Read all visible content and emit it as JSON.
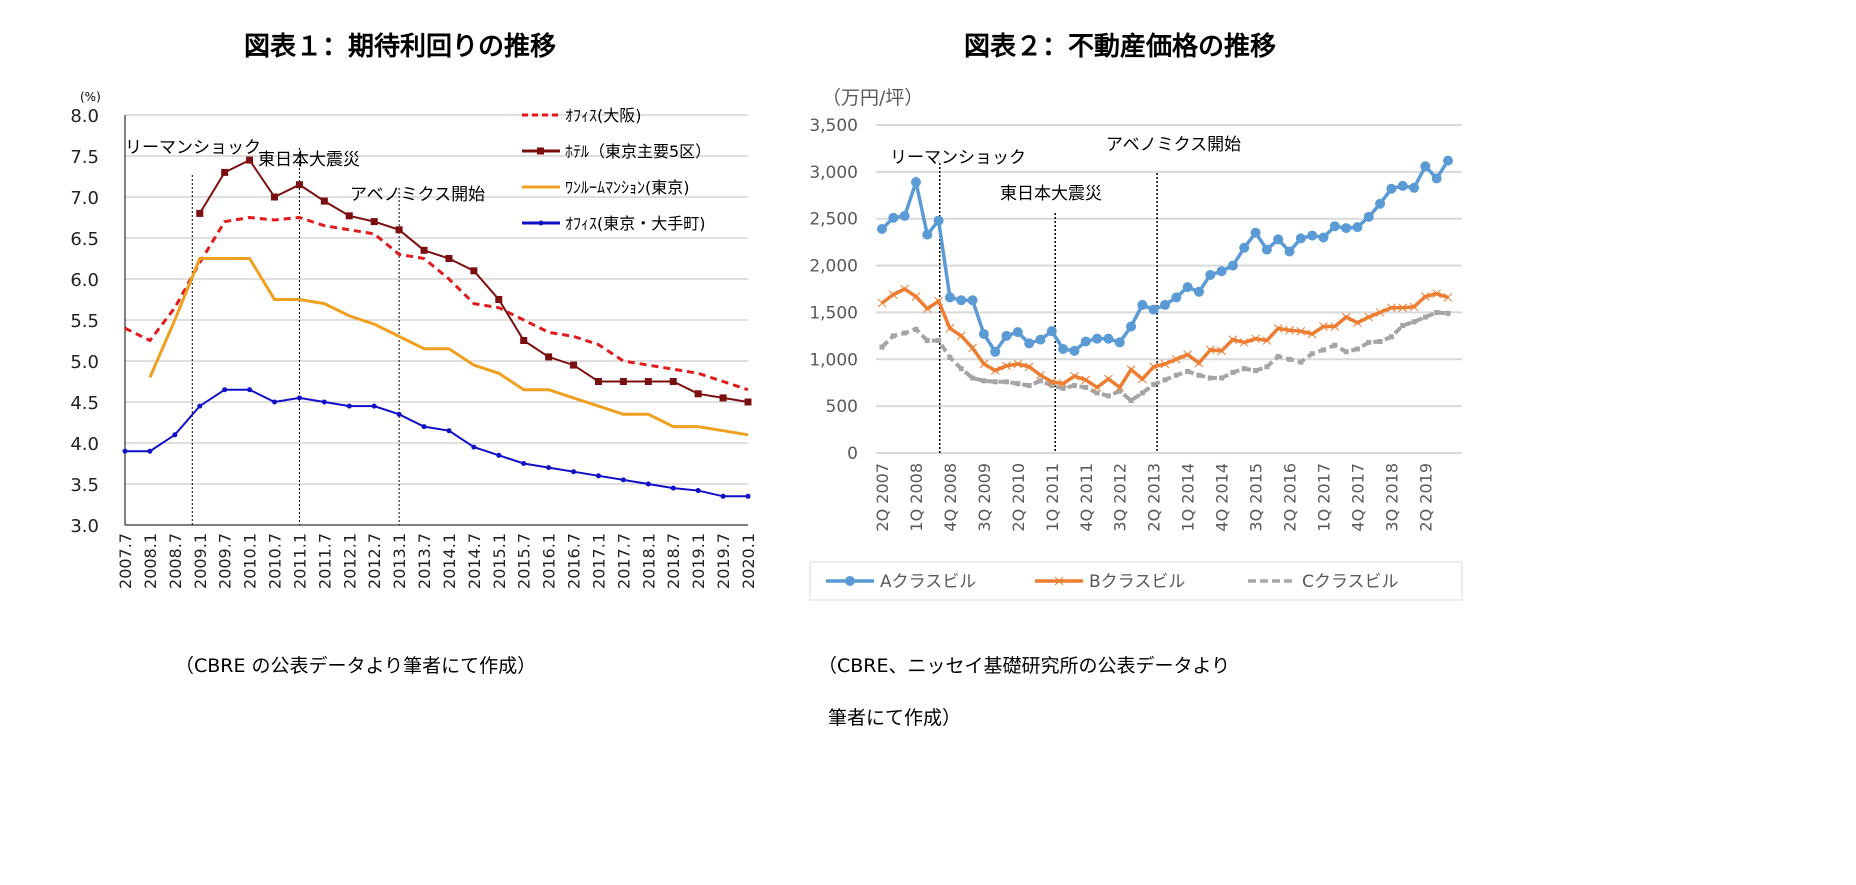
{
  "chart_data": [
    {
      "type": "line",
      "title": "図表１：期待利回りの推移",
      "ylabel": "(%)",
      "ylim": [
        3.0,
        8.0
      ],
      "yticks": [
        "3.0",
        "3.5",
        "4.0",
        "4.5",
        "5.0",
        "5.5",
        "6.0",
        "6.5",
        "7.0",
        "7.5",
        "8.0"
      ],
      "grid": true,
      "legend": "top-right",
      "categories": [
        "2007.7",
        "2008.1",
        "2008.7",
        "2009.1",
        "2009.7",
        "2010.1",
        "2010.7",
        "2011.1",
        "2011.7",
        "2012.1",
        "2012.7",
        "2013.1",
        "2013.7",
        "2014.1",
        "2014.7",
        "2015.1",
        "2015.7",
        "2016.1",
        "2016.7",
        "2017.1",
        "2017.7",
        "2018.1",
        "2018.7",
        "2019.1",
        "2019.7",
        "2020.1"
      ],
      "series": [
        {
          "name": "ｵﾌｨｽ(大阪)",
          "color": "#e31a1c",
          "style": "dashed",
          "values": [
            5.4,
            5.25,
            5.65,
            6.2,
            6.7,
            6.75,
            6.72,
            6.75,
            6.65,
            6.6,
            6.55,
            6.3,
            6.25,
            6.0,
            5.7,
            5.65,
            5.5,
            5.35,
            5.3,
            5.2,
            5.0,
            4.95,
            4.9,
            4.85,
            4.75,
            4.65
          ]
        },
        {
          "name": "ﾎﾃﾙ（東京主要5区）",
          "color": "#7b0f0f",
          "style": "square-markers",
          "values": [
            null,
            null,
            null,
            6.8,
            7.3,
            7.45,
            7.0,
            7.15,
            6.95,
            6.77,
            6.7,
            6.6,
            6.35,
            6.25,
            6.1,
            5.75,
            5.25,
            5.05,
            4.95,
            4.75,
            4.75,
            4.75,
            4.75,
            4.6,
            4.55,
            4.5
          ]
        },
        {
          "name": "ﾜﾝﾙｰﾑﾏﾝｼｮﾝ(東京)",
          "color": "#f0a020",
          "style": "solid",
          "values": [
            null,
            4.8,
            5.5,
            6.25,
            6.25,
            6.25,
            5.75,
            5.75,
            5.7,
            5.55,
            5.45,
            5.3,
            5.15,
            5.15,
            4.95,
            4.85,
            4.65,
            4.65,
            4.55,
            4.45,
            4.35,
            4.35,
            4.2,
            4.2,
            4.15,
            4.1
          ]
        },
        {
          "name": "ｵﾌｨｽ(東京・大手町)",
          "color": "#1010c8",
          "style": "diamond-markers",
          "values": [
            3.9,
            3.9,
            4.1,
            4.45,
            4.65,
            4.65,
            4.5,
            4.55,
            4.5,
            4.45,
            4.45,
            4.35,
            4.2,
            4.15,
            3.95,
            3.85,
            3.75,
            3.7,
            3.65,
            3.6,
            3.55,
            3.5,
            3.45,
            3.42,
            3.35,
            3.35
          ]
        }
      ],
      "annotations": [
        {
          "label": "リーマンショック",
          "x": "2008.9"
        },
        {
          "label": "東日本大震災",
          "x": "2011.1"
        },
        {
          "label": "アベノミクス開始",
          "x": "2013.1"
        }
      ],
      "caption": "（CBRE の公表データより筆者にて作成）"
    },
    {
      "type": "line",
      "title": "図表２：不動産価格の推移",
      "ylabel": "（万円/坪）",
      "ylim": [
        0,
        3500
      ],
      "yticks": [
        "0",
        "500",
        "1,000",
        "1,500",
        "2,000",
        "2,500",
        "3,000",
        "3,500"
      ],
      "grid": true,
      "legend": "bottom",
      "xticklabels": [
        "2Q 2007",
        "1Q 2008",
        "4Q 2008",
        "3Q 2009",
        "2Q 2010",
        "1Q 2011",
        "4Q 2011",
        "3Q 2012",
        "2Q 2013",
        "1Q 2014",
        "4Q 2014",
        "3Q 2015",
        "2Q 2016",
        "1Q 2017",
        "4Q 2017",
        "3Q 2018",
        "2Q 2019"
      ],
      "series": [
        {
          "name": "Aクラスビル",
          "color": "#5b9bd5",
          "values": [
            2390,
            2510,
            2530,
            2890,
            2330,
            2480,
            1660,
            1630,
            1630,
            1270,
            1080,
            1250,
            1290,
            1170,
            1210,
            1300,
            1110,
            1090,
            1190,
            1220,
            1220,
            1180,
            1350,
            1580,
            1530,
            1580,
            1660,
            1770,
            1720,
            1900,
            1940,
            2000,
            2190,
            2350,
            2170,
            2280,
            2150,
            2290,
            2320,
            2300,
            2420,
            2400,
            2410,
            2520,
            2660,
            2820,
            2850,
            2830,
            3060,
            2930,
            3120
          ]
        },
        {
          "name": "Bクラスビル",
          "color": "#ed7d31",
          "values": [
            1600,
            1690,
            1750,
            1670,
            1540,
            1620,
            1330,
            1250,
            1120,
            950,
            880,
            930,
            950,
            920,
            830,
            760,
            740,
            820,
            780,
            700,
            790,
            700,
            890,
            790,
            920,
            950,
            1000,
            1050,
            960,
            1100,
            1090,
            1210,
            1180,
            1220,
            1200,
            1330,
            1310,
            1300,
            1270,
            1350,
            1350,
            1450,
            1390,
            1450,
            1500,
            1550,
            1550,
            1560,
            1670,
            1700,
            1660
          ]
        },
        {
          "name": "Cクラスビル",
          "color": "#a5a5a5",
          "values": [
            1130,
            1250,
            1280,
            1320,
            1200,
            1200,
            1020,
            900,
            800,
            770,
            760,
            760,
            740,
            720,
            770,
            720,
            690,
            720,
            700,
            640,
            610,
            660,
            560,
            640,
            730,
            780,
            830,
            870,
            830,
            800,
            800,
            860,
            900,
            880,
            920,
            1030,
            1000,
            970,
            1060,
            1100,
            1150,
            1080,
            1110,
            1180,
            1190,
            1240,
            1360,
            1400,
            1450,
            1500,
            1490
          ]
        }
      ],
      "annotations": [
        {
          "label": "リーマンショック",
          "x": "3Q 2008"
        },
        {
          "label": "東日本大震災",
          "x": "1Q 2011"
        },
        {
          "label": "アベノミクス開始",
          "x": "1Q 2013"
        }
      ],
      "caption_lines": [
        "（CBRE、ニッセイ基礎研究所の公表データより",
        "筆者にて作成）"
      ]
    }
  ]
}
